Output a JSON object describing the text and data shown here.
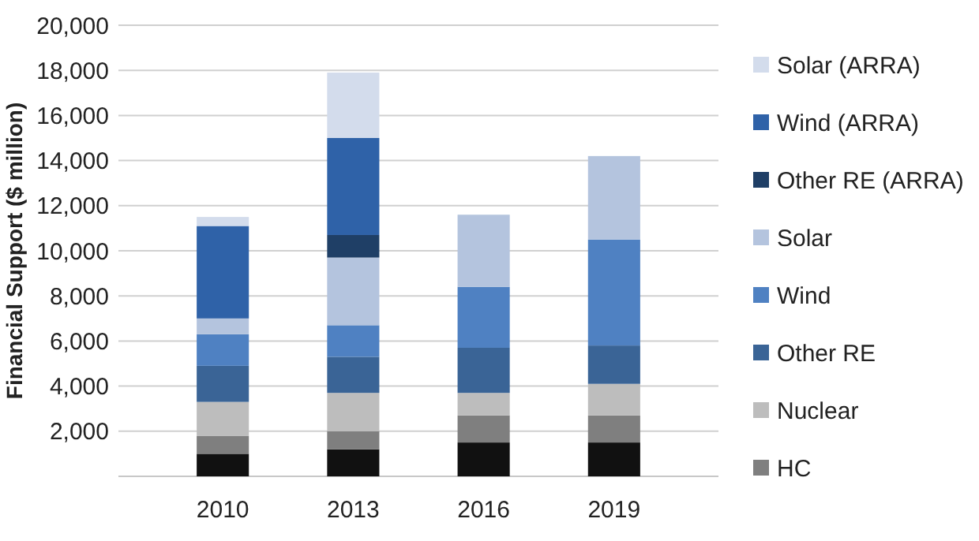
{
  "chart_data": {
    "type": "bar",
    "stacked": true,
    "ylabel": "Financial Support ($ million)",
    "categories": [
      "2010",
      "2013",
      "2016",
      "2019"
    ],
    "ylim": [
      0,
      20000
    ],
    "yticks": [
      {
        "value": 0,
        "label": null
      },
      {
        "value": 2000,
        "label": "2,000"
      },
      {
        "value": 4000,
        "label": "4,000"
      },
      {
        "value": 6000,
        "label": "6,000"
      },
      {
        "value": 8000,
        "label": "8,000"
      },
      {
        "value": 10000,
        "label": "10,000"
      },
      {
        "value": 12000,
        "label": "12,000"
      },
      {
        "value": 14000,
        "label": "14,000"
      },
      {
        "value": 16000,
        "label": "16,000"
      },
      {
        "value": 18000,
        "label": "18,000"
      },
      {
        "value": 20000,
        "label": "20,000"
      }
    ],
    "grid": "y",
    "legend": "right",
    "series": [
      {
        "color": "#111111",
        "values": [
          1000,
          1200,
          1500,
          1500
        ]
      },
      {
        "name": "HC",
        "color": "#7f7f7f",
        "values": [
          800,
          800,
          1200,
          1200
        ]
      },
      {
        "name": "Nuclear",
        "color": "#bdbdbd",
        "values": [
          1500,
          1700,
          1000,
          1400
        ]
      },
      {
        "name": "Other RE",
        "color": "#3a6496",
        "values": [
          1600,
          1600,
          2000,
          1700
        ]
      },
      {
        "name": "Wind",
        "color": "#4f81c2",
        "values": [
          1400,
          1400,
          2700,
          4700
        ]
      },
      {
        "name": "Solar",
        "color": "#b4c4de",
        "values": [
          700,
          3000,
          3200,
          3700
        ]
      },
      {
        "name": "Other RE (ARRA)",
        "color": "#1f3f66",
        "values": [
          0,
          1000,
          0,
          0
        ]
      },
      {
        "name": "Wind (ARRA)",
        "color": "#2f62a8",
        "values": [
          4100,
          4300,
          0,
          0
        ]
      },
      {
        "name": "Solar (ARRA)",
        "color": "#d3dcec",
        "values": [
          400,
          2900,
          0,
          0
        ]
      }
    ]
  }
}
